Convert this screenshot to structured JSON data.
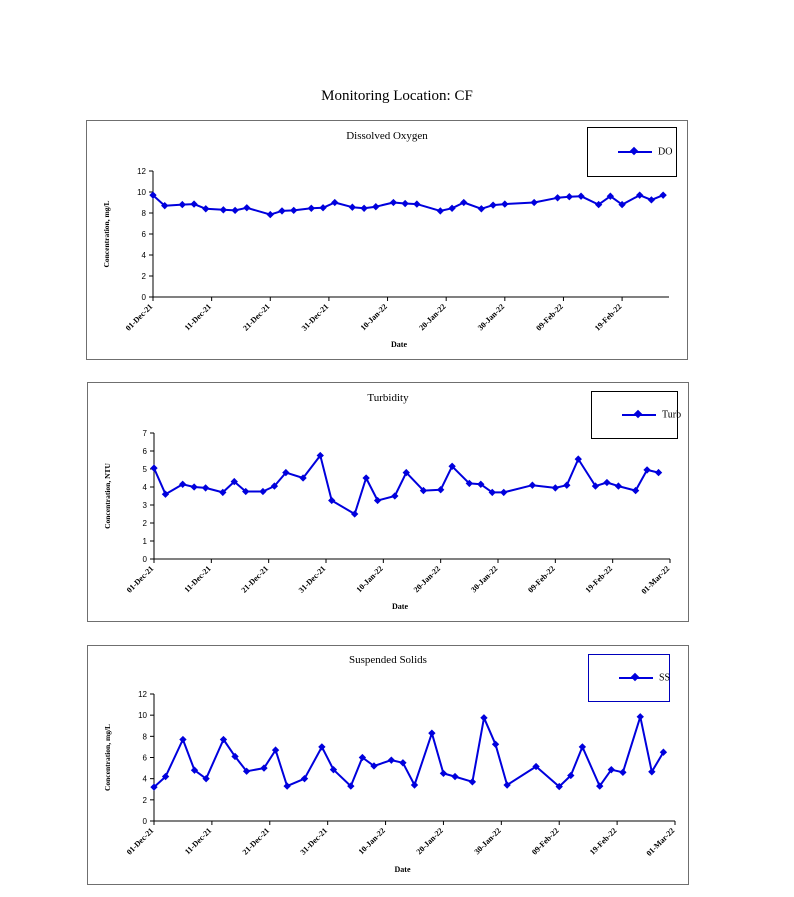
{
  "page_title": "Monitoring Location: CF",
  "chart_data": [
    {
      "type": "line",
      "title": "Dissolved Oxygen",
      "xlabel": "Date",
      "ylabel": "Concentration, mg/L",
      "ylim": [
        0,
        12
      ],
      "yticks": [
        0,
        2,
        4,
        6,
        8,
        10,
        12
      ],
      "xlim": [
        "2021-12-01",
        "2022-02-27"
      ],
      "xticks": [
        "2021-12-01",
        "2021-12-11",
        "2021-12-21",
        "2021-12-31",
        "2022-01-10",
        "2022-01-20",
        "2022-01-30",
        "2022-02-09",
        "2022-02-19"
      ],
      "xtick_labels": [
        "01-Dec-21",
        "11-Dec-21",
        "21-Dec-21",
        "31-Dec-21",
        "10-Jan-22",
        "20-Jan-22",
        "30-Jan-22",
        "09-Feb-22",
        "19-Feb-22"
      ],
      "legend_position": "top-right",
      "color": "#0000dd",
      "series": [
        {
          "name": "DO",
          "x": [
            "2021-12-01",
            "2021-12-03",
            "2021-12-06",
            "2021-12-08",
            "2021-12-10",
            "2021-12-13",
            "2021-12-15",
            "2021-12-17",
            "2021-12-21",
            "2021-12-23",
            "2021-12-25",
            "2021-12-28",
            "2021-12-30",
            "2022-01-01",
            "2022-01-04",
            "2022-01-06",
            "2022-01-08",
            "2022-01-11",
            "2022-01-13",
            "2022-01-15",
            "2022-01-19",
            "2022-01-21",
            "2022-01-23",
            "2022-01-26",
            "2022-01-28",
            "2022-01-30",
            "2022-02-04",
            "2022-02-08",
            "2022-02-10",
            "2022-02-12",
            "2022-02-15",
            "2022-02-17",
            "2022-02-19",
            "2022-02-22",
            "2022-02-24",
            "2022-02-26"
          ],
          "y": [
            9.7,
            8.7,
            8.8,
            8.85,
            8.4,
            8.3,
            8.25,
            8.5,
            7.85,
            8.2,
            8.25,
            8.45,
            8.5,
            9.0,
            8.55,
            8.45,
            8.6,
            9.0,
            8.9,
            8.85,
            8.2,
            8.45,
            9.0,
            8.4,
            8.75,
            8.85,
            9.0,
            9.45,
            9.55,
            9.6,
            8.8,
            9.6,
            8.8,
            9.7,
            9.25,
            9.7
          ]
        }
      ]
    },
    {
      "type": "line",
      "title": "Turbidity",
      "xlabel": "Date",
      "ylabel": "Concentration, NTU",
      "ylim": [
        0,
        7
      ],
      "yticks": [
        0,
        1,
        2,
        3,
        4,
        5,
        6,
        7
      ],
      "xlim": [
        "2021-12-01",
        "2022-03-01"
      ],
      "xticks": [
        "2021-12-01",
        "2021-12-11",
        "2021-12-21",
        "2021-12-31",
        "2022-01-10",
        "2022-01-20",
        "2022-01-30",
        "2022-02-09",
        "2022-02-19",
        "2022-03-01"
      ],
      "xtick_labels": [
        "01-Dec-21",
        "11-Dec-21",
        "21-Dec-21",
        "31-Dec-21",
        "10-Jan-22",
        "20-Jan-22",
        "30-Jan-22",
        "09-Feb-22",
        "19-Feb-22",
        "01-Mar-22"
      ],
      "legend_position": "top-right",
      "color": "#0000dd",
      "series": [
        {
          "name": "Turb",
          "x": [
            "2021-12-01",
            "2021-12-03",
            "2021-12-06",
            "2021-12-08",
            "2021-12-10",
            "2021-12-13",
            "2021-12-15",
            "2021-12-17",
            "2021-12-20",
            "2021-12-22",
            "2021-12-24",
            "2021-12-27",
            "2021-12-30",
            "2022-01-01",
            "2022-01-05",
            "2022-01-07",
            "2022-01-09",
            "2022-01-12",
            "2022-01-14",
            "2022-01-17",
            "2022-01-20",
            "2022-01-22",
            "2022-01-25",
            "2022-01-27",
            "2022-01-29",
            "2022-01-31",
            "2022-02-05",
            "2022-02-09",
            "2022-02-11",
            "2022-02-13",
            "2022-02-16",
            "2022-02-18",
            "2022-02-20",
            "2022-02-23",
            "2022-02-25",
            "2022-02-27"
          ],
          "y": [
            5.05,
            3.6,
            4.15,
            4.0,
            3.95,
            3.7,
            4.3,
            3.75,
            3.75,
            4.05,
            4.8,
            4.5,
            5.75,
            3.25,
            2.5,
            4.5,
            3.25,
            3.5,
            4.8,
            3.8,
            3.85,
            5.15,
            4.2,
            4.15,
            3.7,
            3.7,
            4.1,
            3.95,
            4.1,
            5.55,
            4.05,
            4.25,
            4.05,
            3.8,
            4.95,
            4.8
          ]
        }
      ]
    },
    {
      "type": "line",
      "title": "Suspended Solids",
      "xlabel": "Date",
      "ylabel": "Concentration, mg/L",
      "ylim": [
        0,
        12
      ],
      "yticks": [
        0,
        2,
        4,
        6,
        8,
        10,
        12
      ],
      "xlim": [
        "2021-12-01",
        "2022-03-01"
      ],
      "xticks": [
        "2021-12-01",
        "2021-12-11",
        "2021-12-21",
        "2021-12-31",
        "2022-01-10",
        "2022-01-20",
        "2022-01-30",
        "2022-02-09",
        "2022-02-19",
        "2022-03-01"
      ],
      "xtick_labels": [
        "01-Dec-21",
        "11-Dec-21",
        "21-Dec-21",
        "31-Dec-21",
        "10-Jan-22",
        "20-Jan-22",
        "30-Jan-22",
        "09-Feb-22",
        "19-Feb-22",
        "01-Mar-22"
      ],
      "legend_position": "top-right",
      "color": "#0000dd",
      "series": [
        {
          "name": "SS",
          "x": [
            "2021-12-01",
            "2021-12-03",
            "2021-12-06",
            "2021-12-08",
            "2021-12-10",
            "2021-12-13",
            "2021-12-15",
            "2021-12-17",
            "2021-12-20",
            "2021-12-22",
            "2021-12-24",
            "2021-12-27",
            "2021-12-30",
            "2022-01-01",
            "2022-01-04",
            "2022-01-06",
            "2022-01-08",
            "2022-01-11",
            "2022-01-13",
            "2022-01-15",
            "2022-01-18",
            "2022-01-20",
            "2022-01-22",
            "2022-01-25",
            "2022-01-27",
            "2022-01-29",
            "2022-01-31",
            "2022-02-05",
            "2022-02-09",
            "2022-02-11",
            "2022-02-13",
            "2022-02-16",
            "2022-02-18",
            "2022-02-20",
            "2022-02-23",
            "2022-02-25",
            "2022-02-27"
          ],
          "y": [
            3.2,
            4.2,
            7.7,
            4.8,
            4.0,
            7.7,
            6.1,
            4.7,
            5.0,
            6.7,
            3.3,
            4.0,
            7.0,
            4.85,
            3.3,
            6.0,
            5.2,
            5.75,
            5.5,
            3.4,
            8.3,
            4.5,
            4.2,
            3.7,
            9.75,
            7.25,
            3.4,
            5.15,
            3.25,
            4.3,
            7.0,
            3.3,
            4.85,
            4.6,
            9.85,
            4.65,
            6.5
          ]
        }
      ]
    }
  ]
}
